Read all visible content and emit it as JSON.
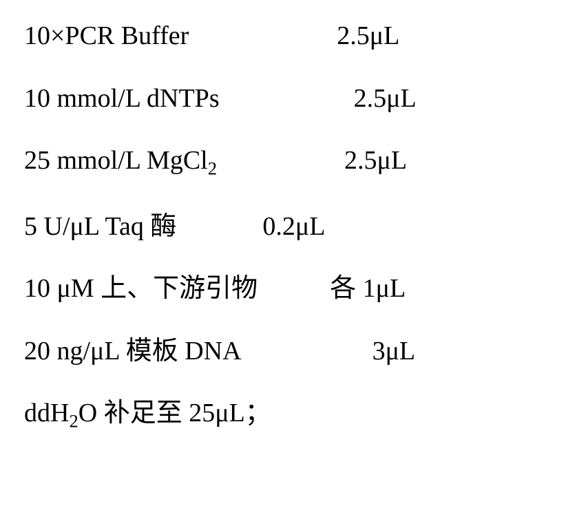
{
  "recipe": {
    "rows": [
      {
        "name": "10×PCR Buffer",
        "amount": "2.5μL"
      },
      {
        "name": "10 mmol/L dNTPs",
        "amount": "2.5μL"
      },
      {
        "name_prefix": "25 mmol/L MgCl",
        "name_sub": "2",
        "amount": "2.5μL"
      },
      {
        "name": "5 U/μL Taq 酶",
        "amount": "0.2μL"
      },
      {
        "name": "10 μM 上、下游引物",
        "amount": "各 1μL"
      },
      {
        "name": "20 ng/μL 模板 DNA",
        "amount": "3μL"
      },
      {
        "name_prefix": "ddH",
        "name_sub": "2",
        "name_suffix": "O 补足至 25μL；"
      }
    ],
    "background_color": "#ffffff",
    "text_color": "#000000",
    "font_family": "Times New Roman, serif",
    "font_size": 38
  }
}
